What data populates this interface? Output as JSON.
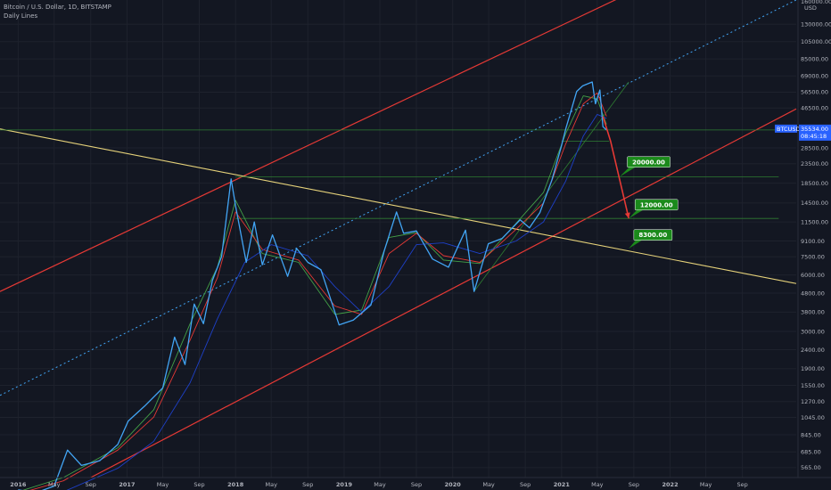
{
  "legend": {
    "symbol_line": "Bitcoin / U.S. Dollar, 1D, BITSTAMP",
    "indicator": "Daily Lines"
  },
  "price_axis": {
    "currency": "USD",
    "ticks": [
      130000,
      105000,
      85000,
      69000,
      56500,
      46500,
      28500,
      23500,
      18500,
      14500,
      11500,
      9100,
      7500,
      6000,
      4800,
      3800,
      3000,
      2400,
      1900,
      1550,
      1270,
      1045,
      845,
      685,
      565
    ],
    "tick_labels": [
      "130000.00",
      "105000.00",
      "85000.00",
      "69000.00",
      "56500.00",
      "46500.00",
      "28500.00",
      "23500.00",
      "18500.00",
      "14500.00",
      "11500.00",
      "9100.00",
      "7500.00",
      "6000.00",
      "4800.00",
      "3800.00",
      "3000.00",
      "2400.00",
      "1900.00",
      "1550.00",
      "1270.00",
      "1045.00",
      "845.00",
      "685.00",
      "565.00"
    ],
    "top_partial_label": "160000.00"
  },
  "time_axis": {
    "labels": [
      {
        "text": "2016",
        "date": "2016-01",
        "bold": true
      },
      {
        "text": "May",
        "date": "2016-05"
      },
      {
        "text": "Sep",
        "date": "2016-09"
      },
      {
        "text": "2017",
        "date": "2017-01",
        "bold": true
      },
      {
        "text": "May",
        "date": "2017-05"
      },
      {
        "text": "Sep",
        "date": "2017-09"
      },
      {
        "text": "2018",
        "date": "2018-01",
        "bold": true
      },
      {
        "text": "May",
        "date": "2018-05"
      },
      {
        "text": "Sep",
        "date": "2018-09"
      },
      {
        "text": "2019",
        "date": "2019-01",
        "bold": true
      },
      {
        "text": "May",
        "date": "2019-05"
      },
      {
        "text": "Sep",
        "date": "2019-09"
      },
      {
        "text": "2020",
        "date": "2020-01",
        "bold": true
      },
      {
        "text": "May",
        "date": "2020-05"
      },
      {
        "text": "Sep",
        "date": "2020-09"
      },
      {
        "text": "2021",
        "date": "2021-01",
        "bold": true
      },
      {
        "text": "May",
        "date": "2021-05"
      },
      {
        "text": "Sep",
        "date": "2021-09"
      },
      {
        "text": "2022",
        "date": "2022-01",
        "bold": true
      },
      {
        "text": "May",
        "date": "2022-05"
      },
      {
        "text": "Sep",
        "date": "2022-09"
      }
    ]
  },
  "current_price": {
    "symbol": "BTCUSD",
    "price": "35534.00",
    "countdown": "08:45:18",
    "value": 35534
  },
  "chart_data": {
    "type": "line",
    "y_scale": "log",
    "ylim": [
      500,
      175000
    ],
    "xlim": [
      "2015-11-01",
      "2023-03-01"
    ],
    "grid": true,
    "legend_placement": "top-left",
    "series": [
      {
        "name": "Bitcoin / U.S. Dollar",
        "color": "#42a5f5",
        "points": [
          [
            "2016-01-01",
            430
          ],
          [
            "2016-03-01",
            415
          ],
          [
            "2016-05-01",
            450
          ],
          [
            "2016-06-15",
            700
          ],
          [
            "2016-08-01",
            580
          ],
          [
            "2016-10-01",
            615
          ],
          [
            "2016-12-01",
            750
          ],
          [
            "2017-01-05",
            1000
          ],
          [
            "2017-03-01",
            1200
          ],
          [
            "2017-05-01",
            1500
          ],
          [
            "2017-06-10",
            2800
          ],
          [
            "2017-07-15",
            2000
          ],
          [
            "2017-08-15",
            4200
          ],
          [
            "2017-09-15",
            3300
          ],
          [
            "2017-10-15",
            5600
          ],
          [
            "2017-11-15",
            7500
          ],
          [
            "2017-12-17",
            19500
          ],
          [
            "2018-01-01",
            14000
          ],
          [
            "2018-02-06",
            7000
          ],
          [
            "2018-03-05",
            11500
          ],
          [
            "2018-04-01",
            6800
          ],
          [
            "2018-05-05",
            9800
          ],
          [
            "2018-06-25",
            5900
          ],
          [
            "2018-07-25",
            8300
          ],
          [
            "2018-09-01",
            7000
          ],
          [
            "2018-10-15",
            6400
          ],
          [
            "2018-11-20",
            4300
          ],
          [
            "2018-12-15",
            3250
          ],
          [
            "2019-02-01",
            3450
          ],
          [
            "2019-04-01",
            4150
          ],
          [
            "2019-05-15",
            8000
          ],
          [
            "2019-06-26",
            13000
          ],
          [
            "2019-07-20",
            10000
          ],
          [
            "2019-09-01",
            10300
          ],
          [
            "2019-10-25",
            7300
          ],
          [
            "2019-12-18",
            6600
          ],
          [
            "2020-02-13",
            10400
          ],
          [
            "2020-03-13",
            4900
          ],
          [
            "2020-04-30",
            8800
          ],
          [
            "2020-06-15",
            9400
          ],
          [
            "2020-08-15",
            11800
          ],
          [
            "2020-09-15",
            10700
          ],
          [
            "2020-10-20",
            12900
          ],
          [
            "2020-11-30",
            19300
          ],
          [
            "2020-12-31",
            29000
          ],
          [
            "2021-01-15",
            36000
          ],
          [
            "2021-02-21",
            57000
          ],
          [
            "2021-03-13",
            61000
          ],
          [
            "2021-04-14",
            64000
          ],
          [
            "2021-04-25",
            49000
          ],
          [
            "2021-05-10",
            58000
          ],
          [
            "2021-05-20",
            37000
          ],
          [
            "2021-06-01",
            35534
          ]
        ]
      },
      {
        "name": "",
        "color": "#1e40c8",
        "points": [
          [
            "2016-01-01",
            400
          ],
          [
            "2016-06-01",
            420
          ],
          [
            "2016-12-01",
            560
          ],
          [
            "2017-04-01",
            780
          ],
          [
            "2017-08-01",
            1600
          ],
          [
            "2017-11-01",
            3500
          ],
          [
            "2018-02-01",
            7000
          ],
          [
            "2018-05-01",
            8700
          ],
          [
            "2018-09-01",
            7600
          ],
          [
            "2018-12-01",
            5200
          ],
          [
            "2019-03-01",
            3800
          ],
          [
            "2019-06-01",
            5200
          ],
          [
            "2019-09-01",
            8700
          ],
          [
            "2019-12-01",
            8900
          ],
          [
            "2020-04-01",
            7800
          ],
          [
            "2020-08-01",
            9100
          ],
          [
            "2020-11-01",
            11500
          ],
          [
            "2021-01-15",
            19000
          ],
          [
            "2021-03-15",
            33000
          ],
          [
            "2021-05-01",
            43000
          ],
          [
            "2021-06-01",
            41000
          ]
        ]
      },
      {
        "name": "",
        "color": "#e53935",
        "points": [
          [
            "2016-01-01",
            410
          ],
          [
            "2016-06-01",
            480
          ],
          [
            "2016-12-01",
            700
          ],
          [
            "2017-04-01",
            1050
          ],
          [
            "2017-08-01",
            2700
          ],
          [
            "2017-11-01",
            5800
          ],
          [
            "2018-01-01",
            13000
          ],
          [
            "2018-04-01",
            8200
          ],
          [
            "2018-08-01",
            7200
          ],
          [
            "2018-12-01",
            4100
          ],
          [
            "2019-03-01",
            3700
          ],
          [
            "2019-06-01",
            7800
          ],
          [
            "2019-09-01",
            10000
          ],
          [
            "2019-12-01",
            7600
          ],
          [
            "2020-04-01",
            7000
          ],
          [
            "2020-08-01",
            10500
          ],
          [
            "2020-11-01",
            14500
          ],
          [
            "2021-01-15",
            30000
          ],
          [
            "2021-03-15",
            49000
          ],
          [
            "2021-05-01",
            56000
          ],
          [
            "2021-06-01",
            42000
          ]
        ]
      },
      {
        "name": "",
        "color": "#43a047",
        "points": [
          [
            "2016-01-01",
            420
          ],
          [
            "2016-06-01",
            500
          ],
          [
            "2016-12-01",
            720
          ],
          [
            "2017-04-01",
            1150
          ],
          [
            "2017-08-01",
            3300
          ],
          [
            "2017-11-01",
            6600
          ],
          [
            "2018-01-01",
            15000
          ],
          [
            "2018-04-01",
            7800
          ],
          [
            "2018-08-01",
            7000
          ],
          [
            "2018-12-01",
            3700
          ],
          [
            "2019-03-01",
            3900
          ],
          [
            "2019-06-01",
            9500
          ],
          [
            "2019-09-01",
            10100
          ],
          [
            "2019-12-01",
            7200
          ],
          [
            "2020-04-01",
            6900
          ],
          [
            "2020-08-01",
            11300
          ],
          [
            "2020-11-01",
            16500
          ],
          [
            "2021-01-15",
            34000
          ],
          [
            "2021-03-15",
            54000
          ],
          [
            "2021-05-01",
            52000
          ],
          [
            "2021-06-01",
            38000
          ]
        ]
      }
    ],
    "drawings": {
      "upper_channel": {
        "color": "#e53935",
        "from": [
          "2015-11-01",
          4900
        ],
        "to": [
          "2021-08-01",
          185000
        ]
      },
      "lower_channel": {
        "color": "#e53935",
        "from": [
          "2016-09-01",
          500
        ],
        "to": [
          "2023-03-01",
          46000
        ]
      },
      "mid_channel_dotted": {
        "color": "#42a5f5",
        "from": [
          "2015-11-01",
          1370
        ],
        "to": [
          "2023-03-01",
          175000
        ]
      },
      "yellow_trendline": {
        "color": "#e6d27a",
        "from": [
          "2015-11-01",
          36000
        ],
        "to": [
          "2023-03-01",
          5400
        ]
      },
      "green_support_20000": {
        "color": "#2e7d32",
        "value": 20000,
        "from": "2018-01-01",
        "to": "2023-01-01"
      },
      "green_support_12000": {
        "color": "#2e7d32",
        "value": 12000,
        "from": "2018-01-01",
        "to": "2023-01-01"
      },
      "green_line_current": {
        "color": "#2e7d32",
        "value": 35534,
        "from": "2015-11-01",
        "to": "2023-01-01"
      },
      "green_wedge_lower": {
        "color": "#2e7d32",
        "from": [
          "2020-03-13",
          4900
        ],
        "to": [
          "2021-08-15",
          64000
        ]
      },
      "green_box_top": {
        "color": "#2e7d32",
        "value": 31000,
        "from": "2021-01-01",
        "to": "2021-06-10"
      },
      "projection_arrow": {
        "color": "#e53935",
        "points": [
          [
            "2021-05-20",
            42000
          ],
          [
            "2021-06-15",
            31000
          ],
          [
            "2021-08-15",
            12000
          ]
        ]
      }
    },
    "annotations": [
      {
        "text": "20000.00",
        "date": "2021-07-15",
        "value": 20000,
        "label_date": "2021-08-10",
        "label_value": 24000
      },
      {
        "text": "12000.00",
        "date": "2021-08-15",
        "value": 12000,
        "label_date": "2021-09-05",
        "label_value": 14200
      },
      {
        "text": "8300.00",
        "date": "2021-08-15",
        "value": 8300,
        "label_date": "2021-09-01",
        "label_value": 9800
      }
    ]
  }
}
